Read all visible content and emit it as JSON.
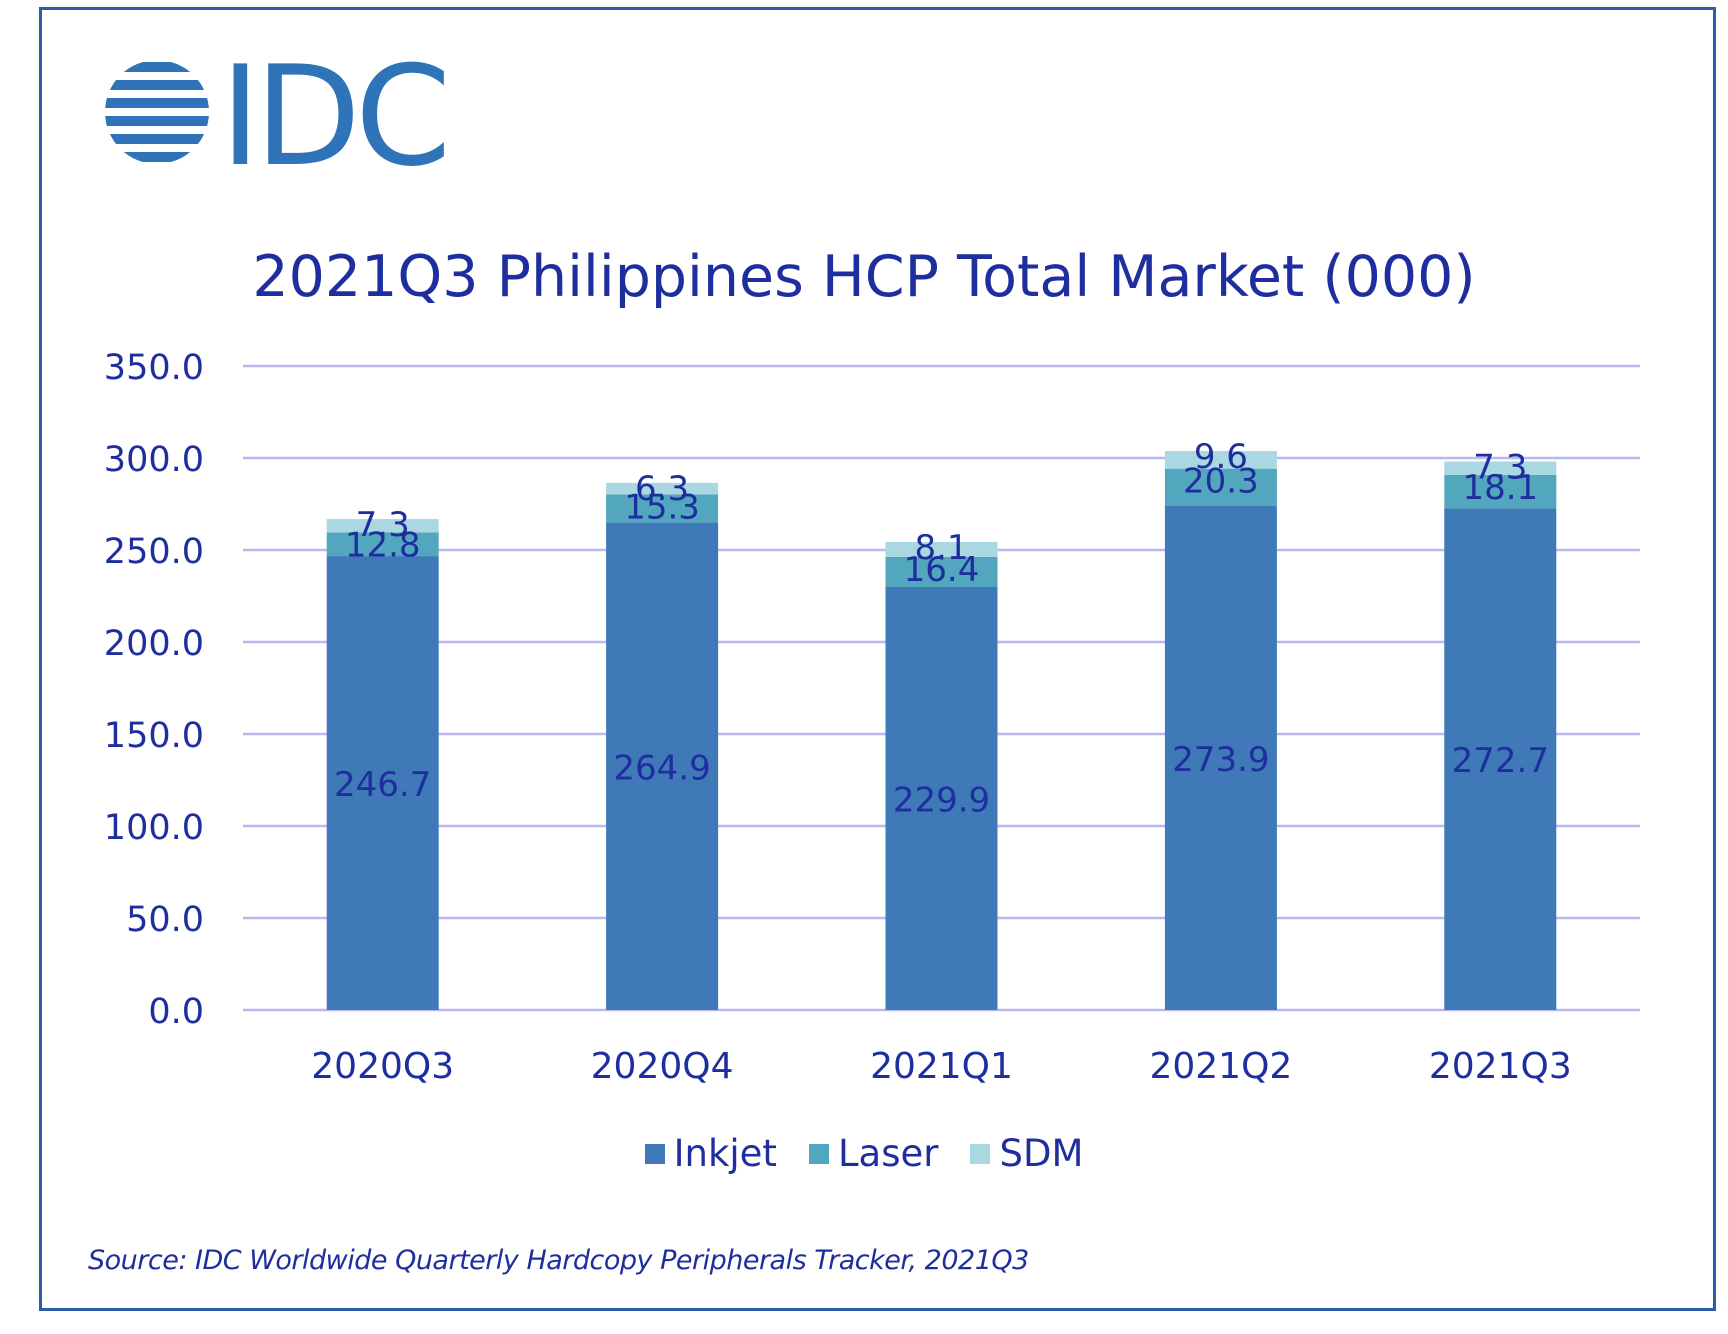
{
  "logo": {
    "text": "IDC",
    "color": "#2F74B8"
  },
  "chart_data": {
    "type": "bar",
    "stacked": true,
    "title": "2021Q3 Philippines HCP Total Market (000)",
    "xlabel": "",
    "ylabel": "",
    "categories": [
      "2020Q3",
      "2020Q4",
      "2021Q1",
      "2021Q2",
      "2021Q3"
    ],
    "series": [
      {
        "name": "Inkjet",
        "color": "#3F79B8",
        "values": [
          246.7,
          264.9,
          229.9,
          273.9,
          272.7
        ]
      },
      {
        "name": "Laser",
        "color": "#52A7BE",
        "values": [
          12.8,
          15.3,
          16.4,
          20.3,
          18.1
        ]
      },
      {
        "name": "SDM",
        "color": "#A9D8E3",
        "values": [
          7.3,
          6.3,
          8.1,
          9.6,
          7.3
        ]
      }
    ],
    "ylim": [
      0,
      350
    ],
    "yticks": [
      "0.0",
      "50.0",
      "100.0",
      "150.0",
      "200.0",
      "250.0",
      "300.0",
      "350.0"
    ],
    "grid": true,
    "legend_position": "bottom"
  },
  "source": "Source: IDC Worldwide Quarterly Hardcopy Peripherals Tracker, 2021Q3"
}
